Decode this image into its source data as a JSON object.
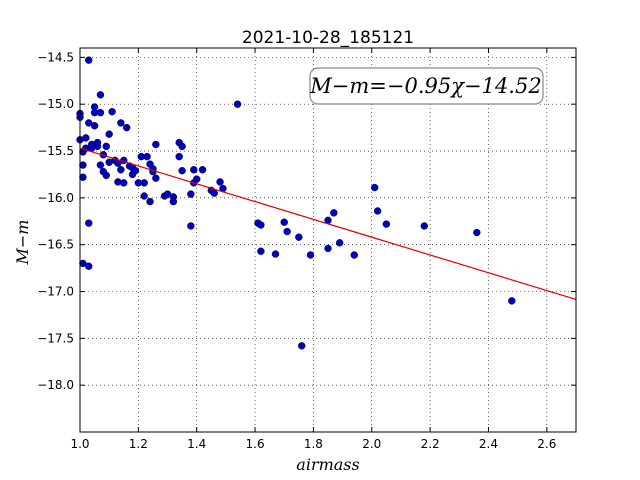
{
  "chart_data": {
    "type": "scatter",
    "title": "2021-10-28_185121",
    "xlabel": "airmass",
    "ylabel": "M−m",
    "xlim": [
      1.0,
      2.7
    ],
    "ylim": [
      -18.5,
      -14.4
    ],
    "y_inverted": true,
    "grid": true,
    "x_ticks": [
      "1.0",
      "1.2",
      "1.4",
      "1.6",
      "1.8",
      "2.0",
      "2.2",
      "2.4",
      "2.6"
    ],
    "x_tick_values": [
      1.0,
      1.2,
      1.4,
      1.6,
      1.8,
      2.0,
      2.2,
      2.4,
      2.6
    ],
    "y_ticks": [
      "−14.5",
      "−15.0",
      "−15.5",
      "−16.0",
      "−16.5",
      "−17.0",
      "−17.5",
      "−18.0"
    ],
    "y_tick_values": [
      -14.5,
      -15.0,
      -15.5,
      -16.0,
      -16.5,
      -17.0,
      -17.5,
      -18.0
    ],
    "annotation": "M−m=−0.95χ−14.52",
    "fit": {
      "slope": -0.95,
      "intercept": -14.52,
      "color": "#e00000"
    },
    "point_color": "#0000c0",
    "points": [
      [
        1.0,
        -15.1
      ],
      [
        1.0,
        -15.14
      ],
      [
        1.0,
        -15.38
      ],
      [
        1.01,
        -15.51
      ],
      [
        1.01,
        -15.65
      ],
      [
        1.01,
        -15.78
      ],
      [
        1.01,
        -16.7
      ],
      [
        1.02,
        -15.47
      ],
      [
        1.02,
        -15.36
      ],
      [
        1.03,
        -15.2
      ],
      [
        1.03,
        -16.27
      ],
      [
        1.03,
        -16.73
      ],
      [
        1.03,
        -14.53
      ],
      [
        1.04,
        -15.47
      ],
      [
        1.04,
        -15.43
      ],
      [
        1.05,
        -15.03
      ],
      [
        1.05,
        -15.09
      ],
      [
        1.05,
        -15.23
      ],
      [
        1.06,
        -15.45
      ],
      [
        1.06,
        -15.41
      ],
      [
        1.07,
        -15.09
      ],
      [
        1.07,
        -14.9
      ],
      [
        1.07,
        -15.65
      ],
      [
        1.08,
        -15.54
      ],
      [
        1.08,
        -15.72
      ],
      [
        1.09,
        -15.76
      ],
      [
        1.09,
        -15.45
      ],
      [
        1.1,
        -15.32
      ],
      [
        1.1,
        -15.62
      ],
      [
        1.11,
        -15.08
      ],
      [
        1.12,
        -15.6
      ],
      [
        1.13,
        -15.83
      ],
      [
        1.13,
        -15.63
      ],
      [
        1.14,
        -15.2
      ],
      [
        1.14,
        -15.7
      ],
      [
        1.15,
        -15.84
      ],
      [
        1.15,
        -15.6
      ],
      [
        1.16,
        -15.25
      ],
      [
        1.17,
        -15.66
      ],
      [
        1.18,
        -15.75
      ],
      [
        1.18,
        -15.68
      ],
      [
        1.19,
        -15.71
      ],
      [
        1.2,
        -15.84
      ],
      [
        1.21,
        -15.56
      ],
      [
        1.22,
        -15.84
      ],
      [
        1.22,
        -15.98
      ],
      [
        1.23,
        -15.56
      ],
      [
        1.24,
        -15.64
      ],
      [
        1.24,
        -16.04
      ],
      [
        1.25,
        -15.72
      ],
      [
        1.25,
        -15.69
      ],
      [
        1.26,
        -15.79
      ],
      [
        1.26,
        -15.43
      ],
      [
        1.29,
        -15.98
      ],
      [
        1.3,
        -15.96
      ],
      [
        1.32,
        -15.99
      ],
      [
        1.32,
        -16.04
      ],
      [
        1.34,
        -15.41
      ],
      [
        1.34,
        -15.56
      ],
      [
        1.35,
        -15.45
      ],
      [
        1.35,
        -15.71
      ],
      [
        1.38,
        -15.96
      ],
      [
        1.38,
        -16.3
      ],
      [
        1.39,
        -15.84
      ],
      [
        1.39,
        -15.7
      ],
      [
        1.4,
        -15.8
      ],
      [
        1.42,
        -15.7
      ],
      [
        1.45,
        -15.92
      ],
      [
        1.46,
        -15.95
      ],
      [
        1.48,
        -15.83
      ],
      [
        1.49,
        -15.9
      ],
      [
        1.54,
        -15.0
      ],
      [
        1.61,
        -16.27
      ],
      [
        1.62,
        -16.29
      ],
      [
        1.62,
        -16.57
      ],
      [
        1.67,
        -16.6
      ],
      [
        1.7,
        -16.26
      ],
      [
        1.71,
        -16.36
      ],
      [
        1.75,
        -16.42
      ],
      [
        1.76,
        -17.58
      ],
      [
        1.79,
        -16.61
      ],
      [
        1.85,
        -16.24
      ],
      [
        1.85,
        -16.54
      ],
      [
        1.87,
        -16.16
      ],
      [
        1.89,
        -16.48
      ],
      [
        1.94,
        -16.61
      ],
      [
        2.01,
        -15.89
      ],
      [
        2.02,
        -16.14
      ],
      [
        2.05,
        -16.28
      ],
      [
        2.18,
        -16.3
      ],
      [
        2.36,
        -16.37
      ],
      [
        2.48,
        -17.1
      ]
    ]
  }
}
